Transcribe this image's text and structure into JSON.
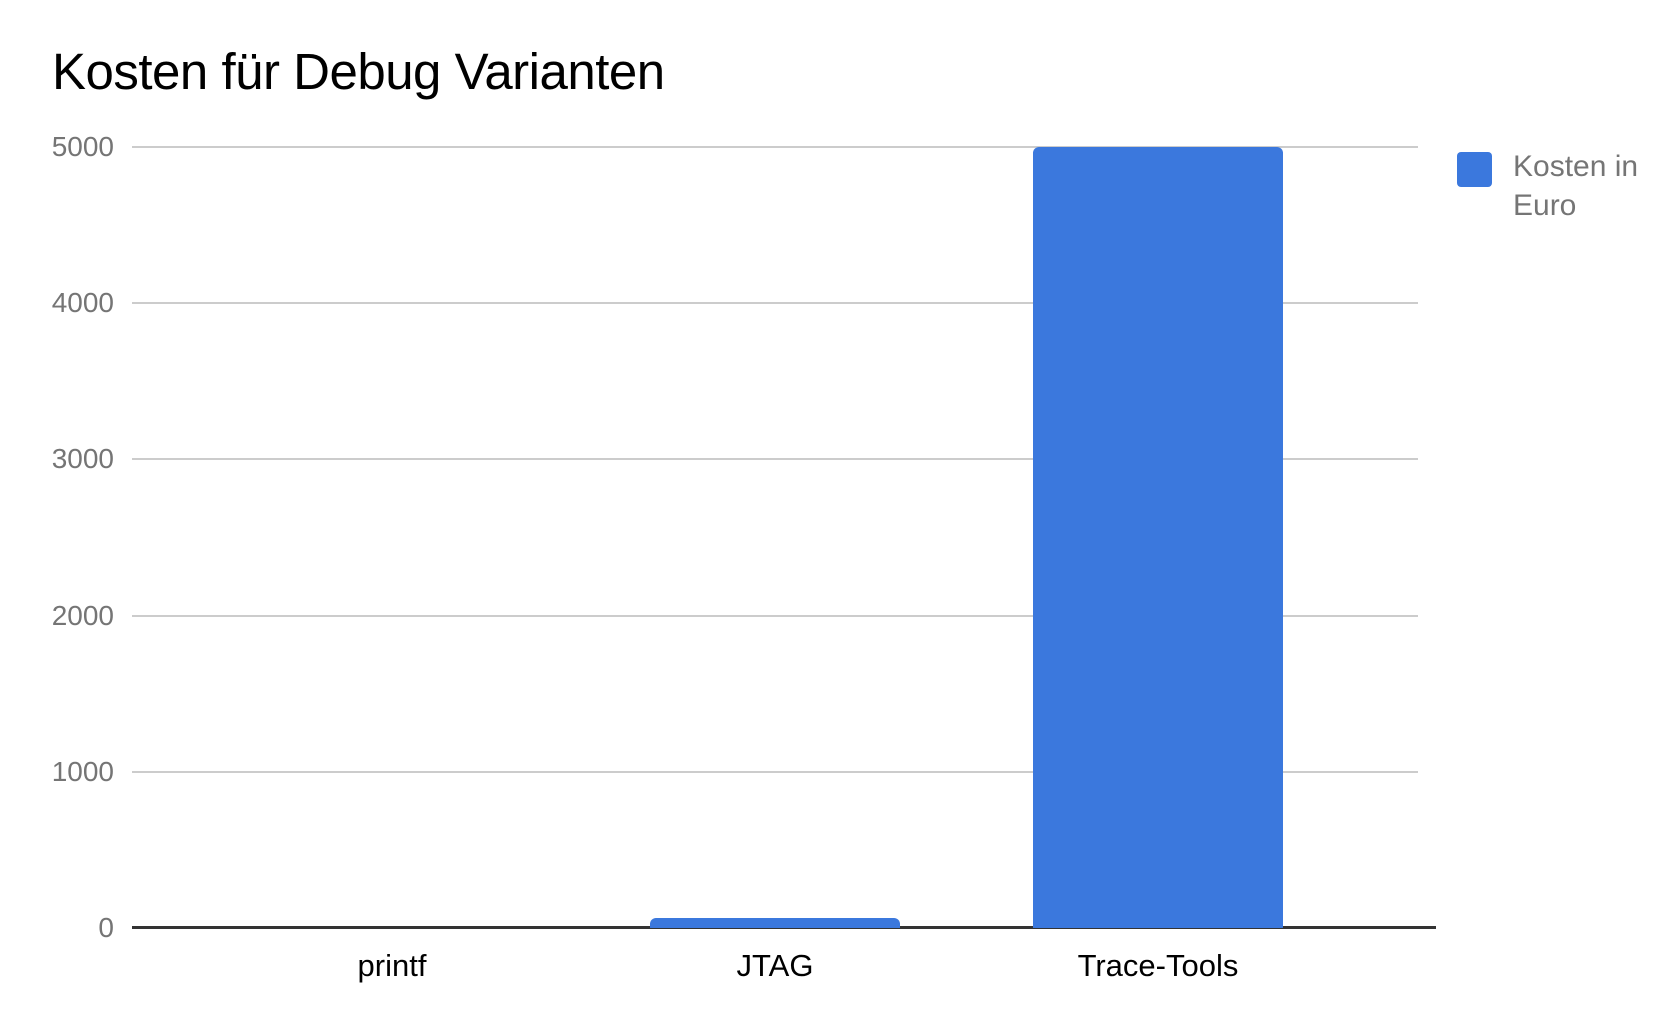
{
  "chart_data": {
    "type": "bar",
    "title": "Kosten für Debug Varianten",
    "categories": [
      "printf",
      "JTAG",
      "Trace-Tools"
    ],
    "series": [
      {
        "name": "Kosten in Euro",
        "values": [
          0,
          65,
          5000
        ]
      }
    ],
    "xlabel": "",
    "ylabel": "",
    "ylim": [
      0,
      5000
    ],
    "y_ticks": [
      0,
      1000,
      2000,
      3000,
      4000,
      5000
    ],
    "grid": true,
    "legend_position": "right",
    "colors": {
      "bar": "#3b78dd",
      "gridline": "#cccccc",
      "axis_baseline": "#333333",
      "y_tick_label": "#757575",
      "x_category_label": "#000000",
      "title": "#000000",
      "legend_text": "#757575"
    }
  }
}
